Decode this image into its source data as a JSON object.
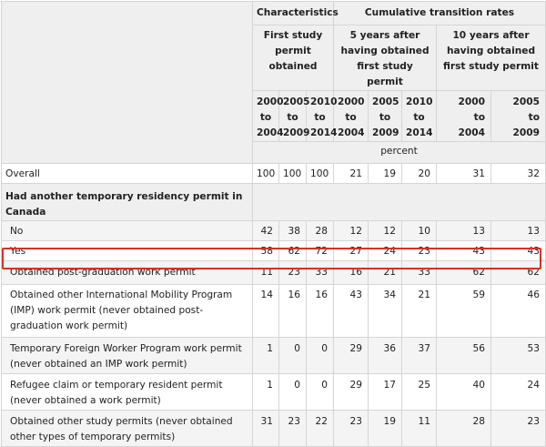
{
  "header": {
    "characteristics": "Characteristics",
    "cumulative": "Cumulative transition rates",
    "first_study_permit": "First study permit obtained",
    "five_years": "5 years after having obtained first study permit",
    "ten_years": "10 years after having obtained first study permit",
    "unit": "percent",
    "years": [
      {
        "line1": "2000",
        "line2": "to",
        "line3": "2004"
      },
      {
        "line1": "2005",
        "line2": "to",
        "line3": "2009"
      },
      {
        "line1": "2010",
        "line2": "to",
        "line3": "2014"
      },
      {
        "line1": "2000",
        "line2": "to",
        "line3": "2004"
      },
      {
        "line1": "2005",
        "line2": "to",
        "line3": "2009"
      },
      {
        "line1": "2010",
        "line2": "to",
        "line3": "2014"
      },
      {
        "line1": "2000",
        "line2": "to",
        "line3": "2004"
      },
      {
        "line1": "2005",
        "line2": "to",
        "line3": "2009"
      }
    ]
  },
  "rows": [
    {
      "label": "Overall",
      "values": [
        "100",
        "100",
        "100",
        "21",
        "19",
        "20",
        "31",
        "32"
      ]
    },
    {
      "label": "Had another temporary residency permit in Canada"
    },
    {
      "label": "No",
      "values": [
        "42",
        "38",
        "28",
        "12",
        "12",
        "10",
        "13",
        "13"
      ]
    },
    {
      "label": "Yes",
      "values": [
        "58",
        "62",
        "72",
        "27",
        "24",
        "23",
        "43",
        "43"
      ]
    },
    {
      "label": "Obtained post-graduation work permit",
      "values": [
        "11",
        "23",
        "33",
        "16",
        "21",
        "33",
        "62",
        "62"
      ]
    },
    {
      "label": "Obtained other International Mobility Program (IMP) work permit (never obtained post-graduation work permit)",
      "values": [
        "14",
        "16",
        "16",
        "43",
        "34",
        "21",
        "59",
        "46"
      ]
    },
    {
      "label": "Temporary Foreign Worker Program work permit (never obtained an IMP work permit)",
      "values": [
        "1",
        "0",
        "0",
        "29",
        "36",
        "37",
        "56",
        "53"
      ]
    },
    {
      "label": "Refugee claim or temporary resident permit (never obtained a work permit)",
      "values": [
        "1",
        "0",
        "0",
        "29",
        "17",
        "25",
        "40",
        "24"
      ]
    },
    {
      "label": "Obtained other study permits (never obtained other types of temporary permits)",
      "values": [
        "31",
        "23",
        "22",
        "23",
        "19",
        "11",
        "28",
        "23"
      ]
    }
  ],
  "colors": {
    "highlight": "#d93025",
    "header_bg": "#efefef",
    "stripe_bg": "#f4f4f4",
    "border": "#d5d5d5"
  }
}
